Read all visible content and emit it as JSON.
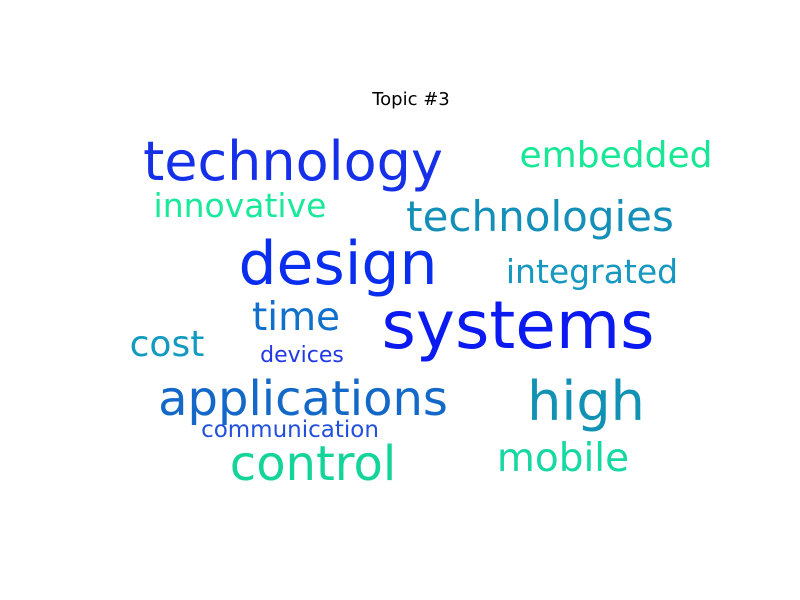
{
  "title": "Topic #3",
  "words": [
    {
      "text": "systems",
      "color": "#0a1af0"
    },
    {
      "text": "design",
      "color": "#0a2ef0"
    },
    {
      "text": "technology",
      "color": "#1530e8"
    },
    {
      "text": "applications",
      "color": "#1368c8"
    },
    {
      "text": "high",
      "color": "#1192b4"
    },
    {
      "text": "technologies",
      "color": "#1490b8"
    },
    {
      "text": "control",
      "color": "#14d49a"
    },
    {
      "text": "embedded",
      "color": "#18e896"
    },
    {
      "text": "innovative",
      "color": "#1ae89a"
    },
    {
      "text": "integrated",
      "color": "#1698c0"
    },
    {
      "text": "time",
      "color": "#1070cc"
    },
    {
      "text": "cost",
      "color": "#129ac0"
    },
    {
      "text": "mobile",
      "color": "#16d8a2"
    },
    {
      "text": "devices",
      "color": "#2238e6"
    },
    {
      "text": "communication",
      "color": "#2250dc"
    }
  ]
}
